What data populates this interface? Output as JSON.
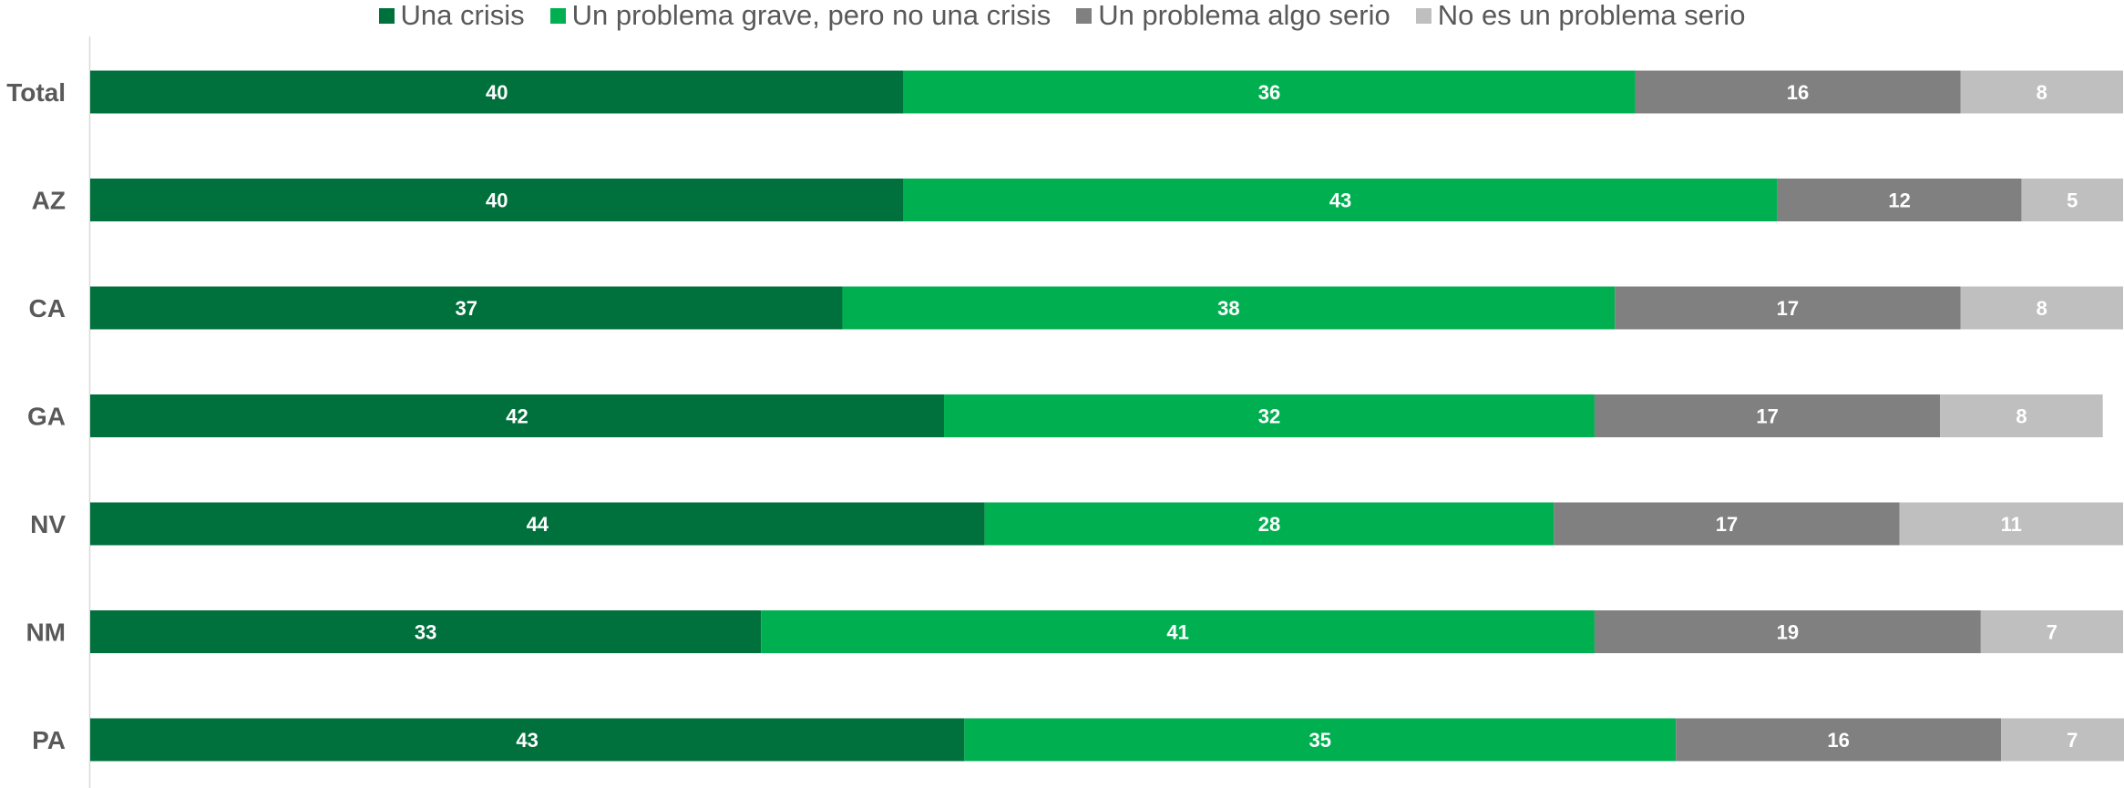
{
  "chart_data": {
    "type": "bar",
    "orientation": "horizontal",
    "stacked": true,
    "categories": [
      "Total",
      "AZ",
      "CA",
      "GA",
      "NV",
      "NM",
      "PA"
    ],
    "series": [
      {
        "name": "Una crisis",
        "color": "#00703C",
        "values": [
          40,
          40,
          37,
          42,
          44,
          33,
          43
        ]
      },
      {
        "name": "Un problema grave, pero no una crisis",
        "color": "#00B050",
        "values": [
          36,
          43,
          38,
          32,
          28,
          41,
          35
        ]
      },
      {
        "name": "Un problema algo serio",
        "color": "#808080",
        "values": [
          16,
          12,
          17,
          17,
          17,
          19,
          16
        ]
      },
      {
        "name": "No es un problema serio",
        "color": "#BFBFBF",
        "values": [
          8,
          5,
          8,
          8,
          11,
          7,
          7
        ]
      }
    ],
    "xlim": [
      0,
      100
    ],
    "legend_position": "top",
    "grid": false,
    "data_labels": true
  }
}
